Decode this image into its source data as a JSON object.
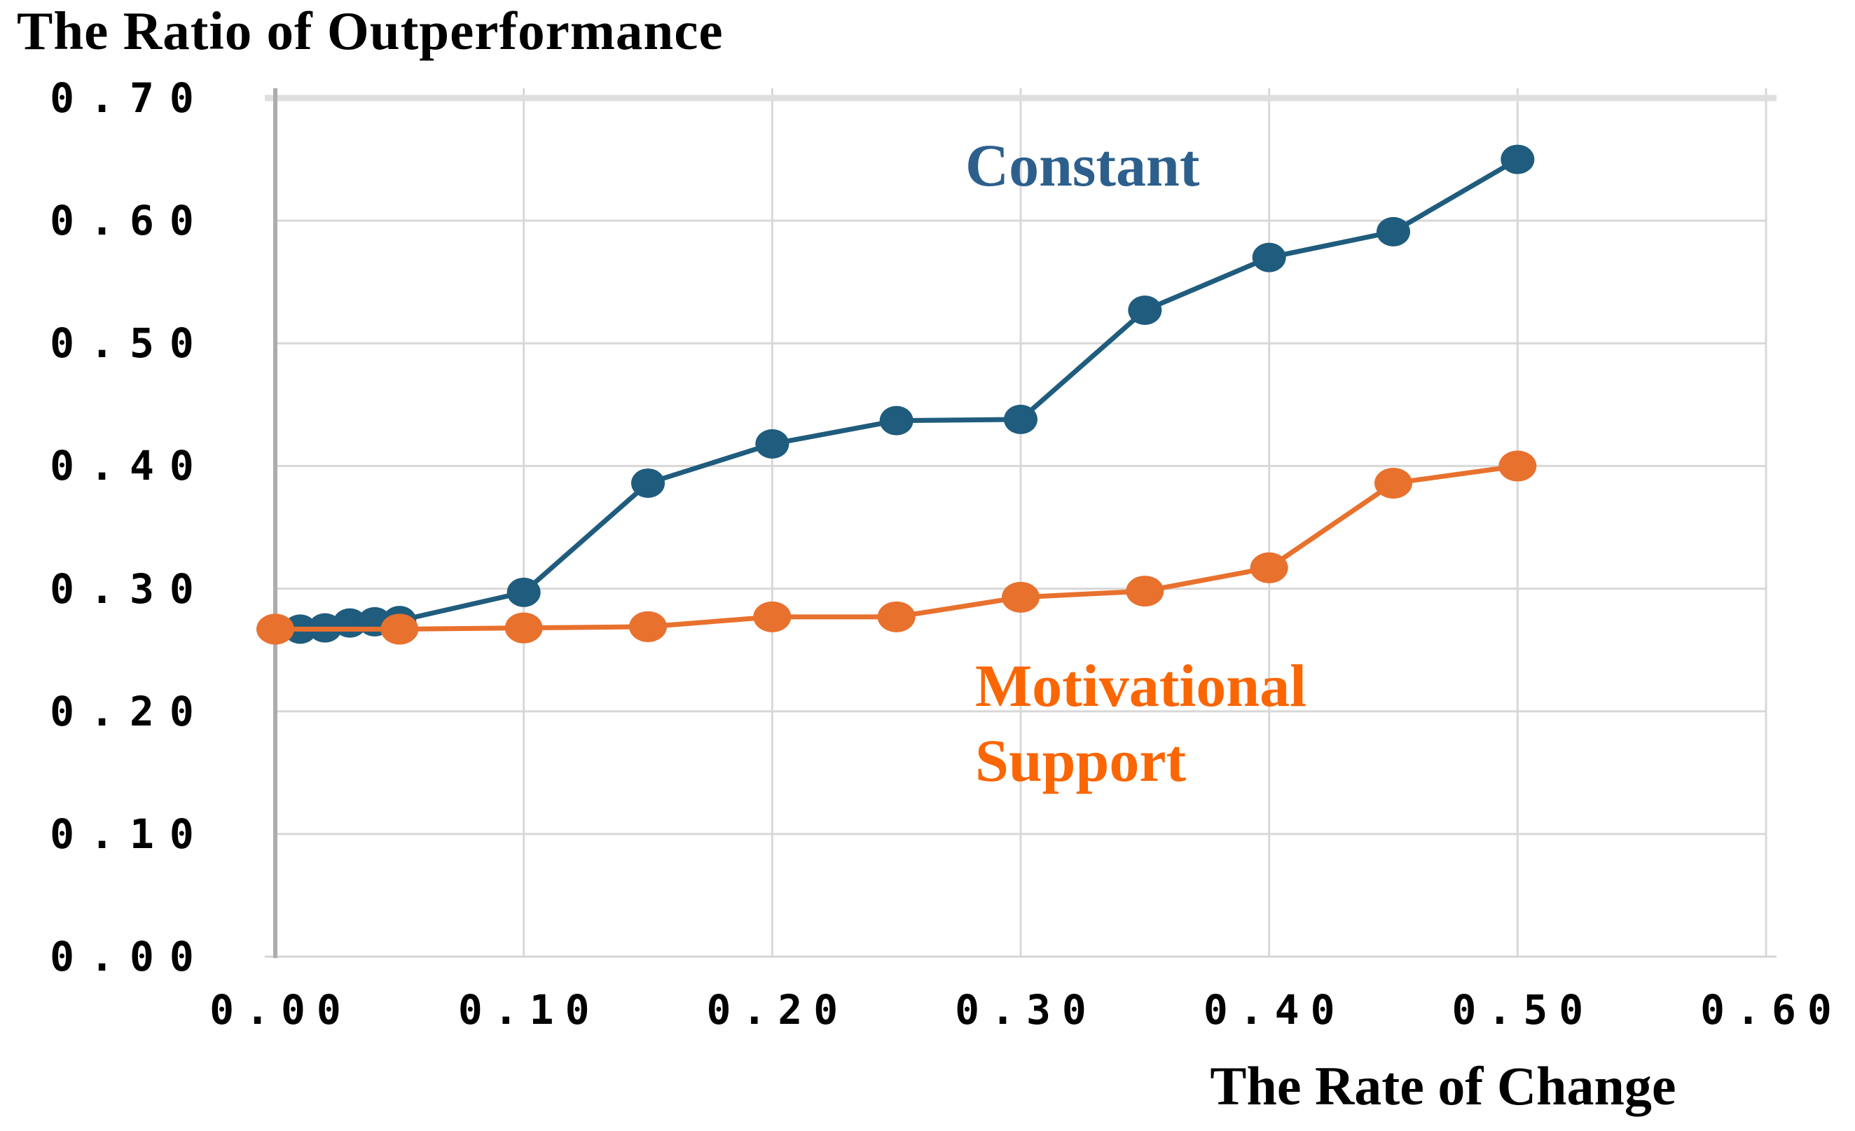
{
  "chart_data": {
    "type": "line",
    "title": "The Ratio of Outperformance",
    "xlabel": "The Rate of Change",
    "ylabel": "The Ratio of Outperformance",
    "xlim": [
      0.0,
      0.6
    ],
    "ylim": [
      0.0,
      0.7
    ],
    "x_tick_step": 0.1,
    "y_tick_step": 0.1,
    "x_tick_labels": [
      "0.00",
      "0.10",
      "0.20",
      "0.30",
      "0.40",
      "0.50",
      "0.60"
    ],
    "y_tick_labels": [
      "0.00",
      "0.10",
      "0.20",
      "0.30",
      "0.40",
      "0.50",
      "0.60",
      "0.70"
    ],
    "grid": true,
    "legend_position": "inline-annotations",
    "series": [
      {
        "name": "Constant",
        "color": "#1F5C7D",
        "label_color": "#2D5F8C",
        "label_lines": [
          "Constant"
        ],
        "x": [
          0.0,
          0.01,
          0.02,
          0.03,
          0.04,
          0.05,
          0.1,
          0.15,
          0.2,
          0.25,
          0.3,
          0.35,
          0.4,
          0.45,
          0.5
        ],
        "y": [
          0.267,
          0.267,
          0.268,
          0.272,
          0.273,
          0.274,
          0.297,
          0.386,
          0.418,
          0.437,
          0.438,
          0.527,
          0.57,
          0.591,
          0.65
        ]
      },
      {
        "name": "Motivational Support",
        "color": "#E8712E",
        "label_color": "#FB6602",
        "label_lines": [
          "Motivational",
          "Support"
        ],
        "x": [
          0.0,
          0.05,
          0.1,
          0.15,
          0.2,
          0.25,
          0.3,
          0.35,
          0.4,
          0.45,
          0.5
        ],
        "y": [
          0.267,
          0.267,
          0.268,
          0.269,
          0.277,
          0.277,
          0.293,
          0.298,
          0.317,
          0.386,
          0.4
        ]
      }
    ]
  }
}
